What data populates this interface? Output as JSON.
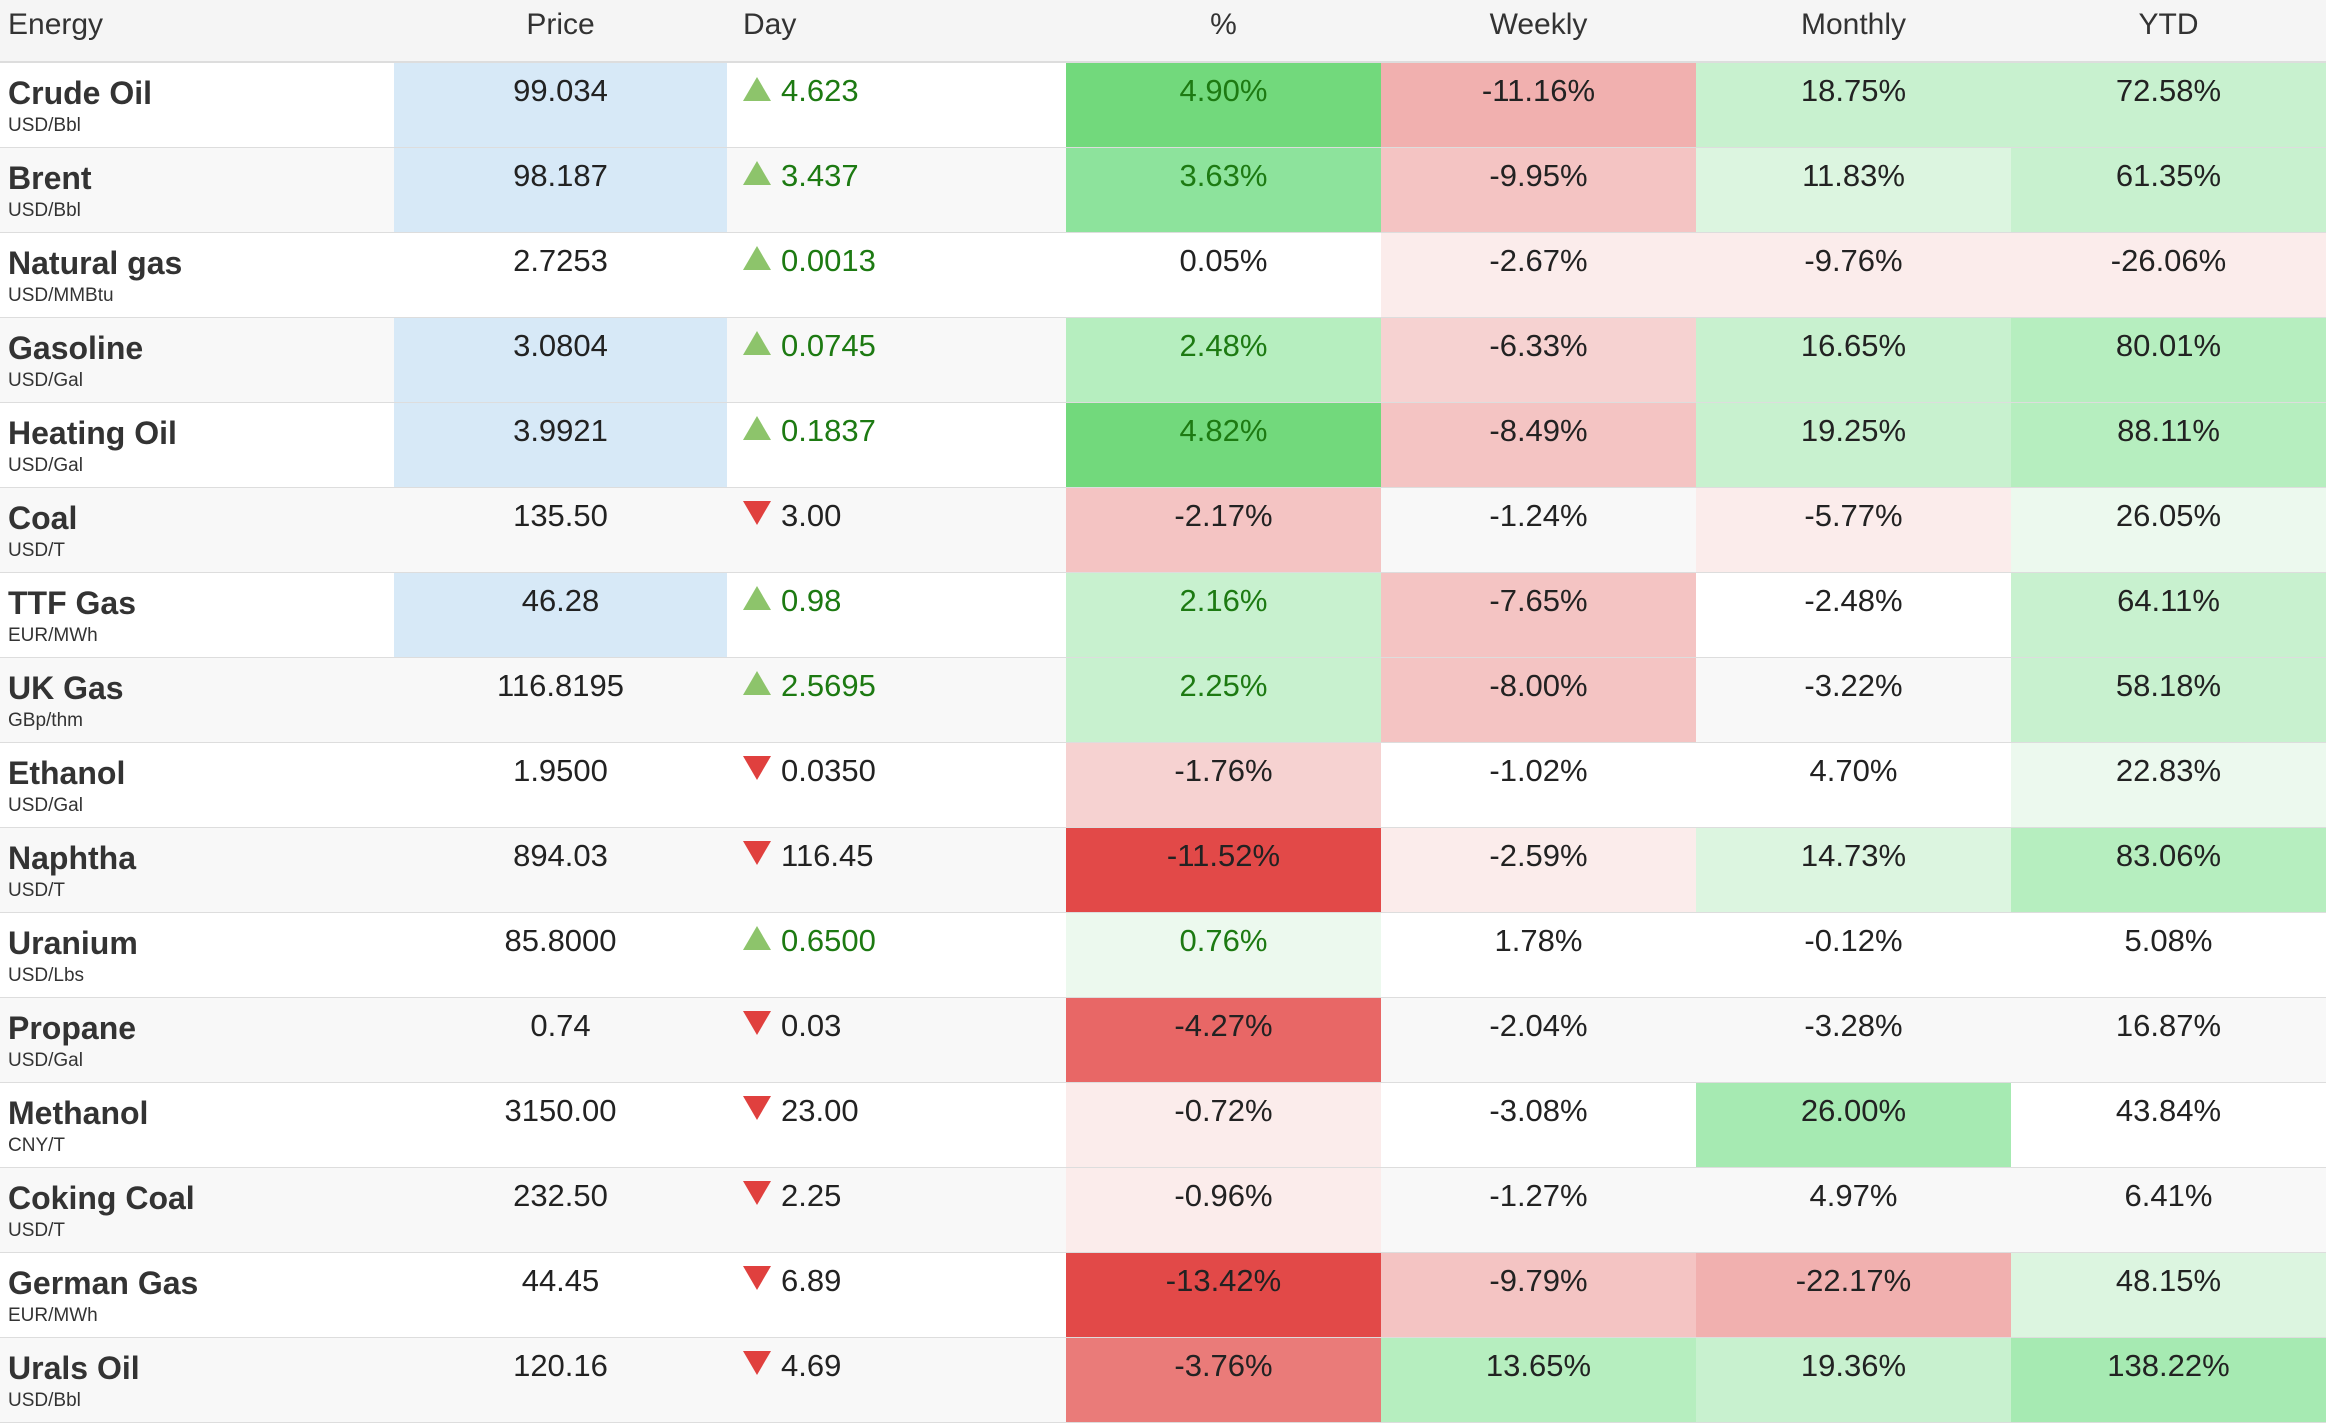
{
  "colors": {
    "price_highlight": "#d7e9f7",
    "up_text": "#1d7a12",
    "up_triangle": "#8dc46b",
    "down_triangle": "#e0403e",
    "green_scale": [
      "#ecf9ee",
      "#dcf5e0",
      "#c8f1cf",
      "#b6eebf",
      "#a6eab2",
      "#8de39c",
      "#72d97c"
    ],
    "red_scale": [
      "#fbeceb",
      "#f6d2d1",
      "#f4c4c3",
      "#f1b0af",
      "#ea7b79",
      "#e86766",
      "#e24948"
    ]
  },
  "headers": [
    "Energy",
    "Price",
    "Day",
    "%",
    "Weekly",
    "Monthly",
    "YTD"
  ],
  "rows": [
    {
      "name": "Crude Oil",
      "unit": "USD/Bbl",
      "price": "99.034",
      "price_hl": true,
      "dir": "up",
      "day": "4.623",
      "pct": "4.90%",
      "weekly": "-11.16%",
      "monthly": "18.75%",
      "ytd": "72.58%",
      "bg": {
        "pct": "#72d97c",
        "weekly": "#f1b0af",
        "monthly": "#c8f1cf",
        "ytd": "#c8f1cf"
      }
    },
    {
      "name": "Brent",
      "unit": "USD/Bbl",
      "price": "98.187",
      "price_hl": true,
      "dir": "up",
      "day": "3.437",
      "pct": "3.63%",
      "weekly": "-9.95%",
      "monthly": "11.83%",
      "ytd": "61.35%",
      "bg": {
        "pct": "#8de39c",
        "weekly": "#f4c4c3",
        "monthly": "#dcf5e0",
        "ytd": "#c8f1cf"
      }
    },
    {
      "name": "Natural gas",
      "unit": "USD/MMBtu",
      "price": "2.7253",
      "price_hl": false,
      "dir": "up",
      "day": "0.0013",
      "pct": "0.05%",
      "weekly": "-2.67%",
      "monthly": "-9.76%",
      "ytd": "-26.06%",
      "bg": {
        "pct": "",
        "weekly": "#fbeceb",
        "monthly": "#fbeceb",
        "ytd": "#fbeceb"
      }
    },
    {
      "name": "Gasoline",
      "unit": "USD/Gal",
      "price": "3.0804",
      "price_hl": true,
      "dir": "up",
      "day": "0.0745",
      "pct": "2.48%",
      "weekly": "-6.33%",
      "monthly": "16.65%",
      "ytd": "80.01%",
      "bg": {
        "pct": "#b6eebf",
        "weekly": "#f6d2d1",
        "monthly": "#c8f1cf",
        "ytd": "#b6eebf"
      }
    },
    {
      "name": "Heating Oil",
      "unit": "USD/Gal",
      "price": "3.9921",
      "price_hl": true,
      "dir": "up",
      "day": "0.1837",
      "pct": "4.82%",
      "weekly": "-8.49%",
      "monthly": "19.25%",
      "ytd": "88.11%",
      "bg": {
        "pct": "#72d97c",
        "weekly": "#f4c4c3",
        "monthly": "#c8f1cf",
        "ytd": "#b6eebf"
      }
    },
    {
      "name": "Coal",
      "unit": "USD/T",
      "price": "135.50",
      "price_hl": false,
      "dir": "down",
      "day": "3.00",
      "pct": "-2.17%",
      "weekly": "-1.24%",
      "monthly": "-5.77%",
      "ytd": "26.05%",
      "bg": {
        "pct": "#f4c4c3",
        "weekly": "",
        "monthly": "#fbeceb",
        "ytd": "#ecf9ee"
      }
    },
    {
      "name": "TTF Gas",
      "unit": "EUR/MWh",
      "price": "46.28",
      "price_hl": true,
      "dir": "up",
      "day": "0.98",
      "pct": "2.16%",
      "weekly": "-7.65%",
      "monthly": "-2.48%",
      "ytd": "64.11%",
      "bg": {
        "pct": "#c8f1cf",
        "weekly": "#f4c4c3",
        "monthly": "",
        "ytd": "#c8f1cf"
      }
    },
    {
      "name": "UK Gas",
      "unit": "GBp/thm",
      "price": "116.8195",
      "price_hl": false,
      "dir": "up",
      "day": "2.5695",
      "pct": "2.25%",
      "weekly": "-8.00%",
      "monthly": "-3.22%",
      "ytd": "58.18%",
      "bg": {
        "pct": "#c8f1cf",
        "weekly": "#f4c4c3",
        "monthly": "",
        "ytd": "#c8f1cf"
      }
    },
    {
      "name": "Ethanol",
      "unit": "USD/Gal",
      "price": "1.9500",
      "price_hl": false,
      "dir": "down",
      "day": "0.0350",
      "pct": "-1.76%",
      "weekly": "-1.02%",
      "monthly": "4.70%",
      "ytd": "22.83%",
      "bg": {
        "pct": "#f6d2d1",
        "weekly": "",
        "monthly": "",
        "ytd": "#ecf9ee"
      }
    },
    {
      "name": "Naphtha",
      "unit": "USD/T",
      "price": "894.03",
      "price_hl": false,
      "dir": "down",
      "day": "116.45",
      "pct": "-11.52%",
      "weekly": "-2.59%",
      "monthly": "14.73%",
      "ytd": "83.06%",
      "bg": {
        "pct": "#e24948",
        "weekly": "#fbeceb",
        "monthly": "#dcf5e0",
        "ytd": "#b6eebf"
      }
    },
    {
      "name": "Uranium",
      "unit": "USD/Lbs",
      "price": "85.8000",
      "price_hl": false,
      "dir": "up",
      "day": "0.6500",
      "pct": "0.76%",
      "weekly": "1.78%",
      "monthly": "-0.12%",
      "ytd": "5.08%",
      "bg": {
        "pct": "#ecf9ee",
        "weekly": "",
        "monthly": "",
        "ytd": ""
      }
    },
    {
      "name": "Propane",
      "unit": "USD/Gal",
      "price": "0.74",
      "price_hl": false,
      "dir": "down",
      "day": "0.03",
      "pct": "-4.27%",
      "weekly": "-2.04%",
      "monthly": "-3.28%",
      "ytd": "16.87%",
      "bg": {
        "pct": "#e86766",
        "weekly": "",
        "monthly": "",
        "ytd": ""
      }
    },
    {
      "name": "Methanol",
      "unit": "CNY/T",
      "price": "3150.00",
      "price_hl": false,
      "dir": "down",
      "day": "23.00",
      "pct": "-0.72%",
      "weekly": "-3.08%",
      "monthly": "26.00%",
      "ytd": "43.84%",
      "bg": {
        "pct": "#fbeceb",
        "weekly": "",
        "monthly": "#a6eab2",
        "ytd": ""
      }
    },
    {
      "name": "Coking Coal",
      "unit": "USD/T",
      "price": "232.50",
      "price_hl": false,
      "dir": "down",
      "day": "2.25",
      "pct": "-0.96%",
      "weekly": "-1.27%",
      "monthly": "4.97%",
      "ytd": "6.41%",
      "bg": {
        "pct": "#fbeceb",
        "weekly": "",
        "monthly": "",
        "ytd": ""
      }
    },
    {
      "name": "German Gas",
      "unit": "EUR/MWh",
      "price": "44.45",
      "price_hl": false,
      "dir": "down",
      "day": "6.89",
      "pct": "-13.42%",
      "weekly": "-9.79%",
      "monthly": "-22.17%",
      "ytd": "48.15%",
      "bg": {
        "pct": "#e24948",
        "weekly": "#f4c4c3",
        "monthly": "#f1b0af",
        "ytd": "#dcf5e0"
      }
    },
    {
      "name": "Urals Oil",
      "unit": "USD/Bbl",
      "price": "120.16",
      "price_hl": false,
      "dir": "down",
      "day": "4.69",
      "pct": "-3.76%",
      "weekly": "13.65%",
      "monthly": "19.36%",
      "ytd": "138.22%",
      "bg": {
        "pct": "#ea7b79",
        "weekly": "#b6eebf",
        "monthly": "#c8f1cf",
        "ytd": "#a6eab2"
      }
    }
  ]
}
